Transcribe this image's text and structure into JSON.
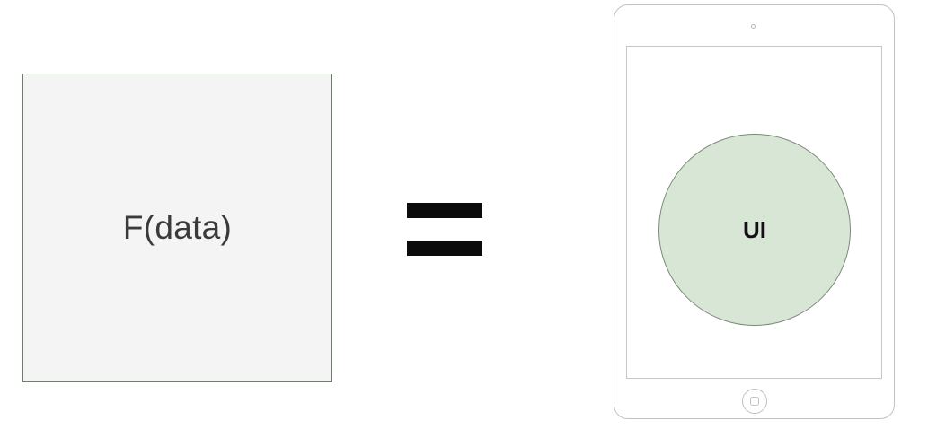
{
  "function_box": {
    "label": "F(data)"
  },
  "equals": {
    "icon": "equals-sign"
  },
  "tablet": {
    "screen": {
      "circle_label": "UI"
    },
    "icons": [
      "camera-icon",
      "home-button-icon"
    ]
  },
  "colors": {
    "box_fill": "#f4f4f4",
    "box_border": "#6b7f68",
    "circle_fill": "#d8e7d5",
    "circle_border": "#7a8c77",
    "device_outline": "#c2c2c2",
    "equals": "#0b0b0b"
  }
}
